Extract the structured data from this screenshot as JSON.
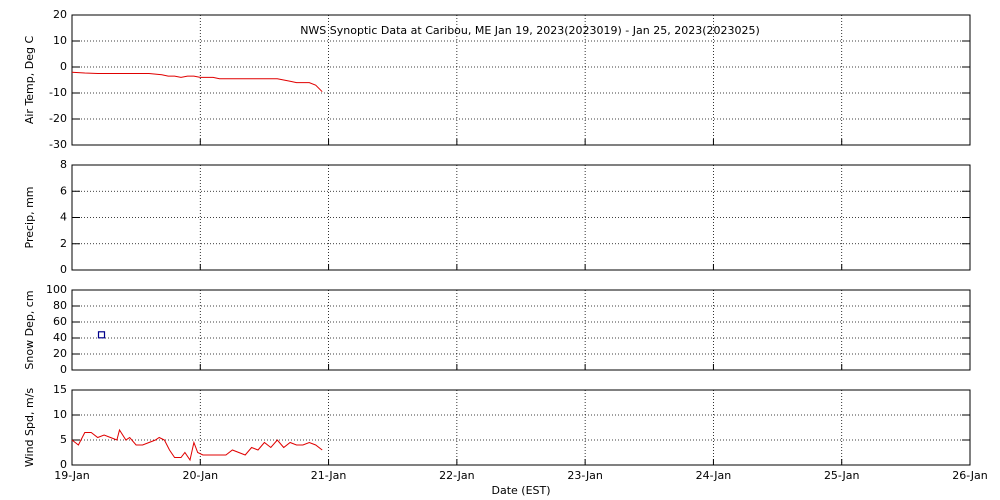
{
  "chart_data": [
    {
      "type": "line",
      "title": "NWS Synoptic Data at Caribou, ME   Jan 19, 2023(2023019) - Jan 25, 2023(2023025)",
      "ylabel": "Air Temp, Deg C",
      "color": "#e00000",
      "x": [
        0,
        0.1,
        0.2,
        0.4,
        0.6,
        0.7,
        0.75,
        0.8,
        0.85,
        0.9,
        0.95,
        1.0,
        1.1,
        1.15,
        1.5,
        1.6,
        1.65,
        1.7,
        1.75,
        1.85,
        1.9,
        1.95
      ],
      "values": [
        -2,
        -2.3,
        -2.5,
        -2.5,
        -2.5,
        -3,
        -3.5,
        -3.5,
        -4,
        -3.5,
        -3.5,
        -4,
        -4,
        -4.5,
        -4.5,
        -4.5,
        -5,
        -5.5,
        -6,
        -6,
        -7,
        -9.5
      ],
      "xlim": [
        0,
        7
      ],
      "xticks": [
        0,
        1,
        2,
        3,
        4,
        5,
        6,
        7
      ],
      "ylim": [
        -30,
        20
      ],
      "yticks": [
        -30,
        -20,
        -10,
        0,
        10,
        20
      ],
      "grid": true
    },
    {
      "type": "line",
      "ylabel": "Precip, mm",
      "color": "#e00000",
      "x": [],
      "values": [],
      "xlim": [
        0,
        7
      ],
      "xticks": [
        0,
        1,
        2,
        3,
        4,
        5,
        6,
        7
      ],
      "ylim": [
        0,
        8
      ],
      "yticks": [
        0,
        2,
        4,
        6,
        8
      ],
      "grid": true
    },
    {
      "type": "scatter",
      "ylabel": "Snow Dep, cm",
      "color": "#00008b",
      "x": [
        0.23
      ],
      "values": [
        44
      ],
      "xlim": [
        0,
        7
      ],
      "xticks": [
        0,
        1,
        2,
        3,
        4,
        5,
        6,
        7
      ],
      "ylim": [
        0,
        100
      ],
      "yticks": [
        0,
        20,
        40,
        60,
        80,
        100
      ],
      "grid": true
    },
    {
      "type": "line",
      "ylabel": "Wind Spd, m/s",
      "xlabel": "Date (EST)",
      "color": "#e00000",
      "x": [
        0,
        0.05,
        0.1,
        0.15,
        0.2,
        0.25,
        0.3,
        0.35,
        0.37,
        0.42,
        0.45,
        0.5,
        0.55,
        0.6,
        0.65,
        0.68,
        0.72,
        0.76,
        0.8,
        0.85,
        0.88,
        0.92,
        0.95,
        0.98,
        1.02,
        1.1,
        1.2,
        1.25,
        1.3,
        1.35,
        1.4,
        1.45,
        1.5,
        1.55,
        1.6,
        1.65,
        1.7,
        1.75,
        1.8,
        1.85,
        1.9,
        1.95
      ],
      "values": [
        5,
        4,
        6.5,
        6.5,
        5.5,
        6,
        5.5,
        5,
        7,
        5,
        5.5,
        4,
        4,
        4.5,
        5,
        5.5,
        5,
        3,
        1.5,
        1.5,
        2.5,
        1,
        4.5,
        2.5,
        2,
        2,
        2,
        3,
        2.5,
        2,
        3.5,
        3,
        4.5,
        3.5,
        5,
        3.5,
        4.5,
        4,
        4,
        4.5,
        4,
        3
      ],
      "xlim": [
        0,
        7
      ],
      "xticks": [
        {
          "value": 0,
          "label": "19-Jan"
        },
        {
          "value": 1,
          "label": "20-Jan"
        },
        {
          "value": 2,
          "label": "21-Jan"
        },
        {
          "value": 3,
          "label": "22-Jan"
        },
        {
          "value": 4,
          "label": "23-Jan"
        },
        {
          "value": 5,
          "label": "24-Jan"
        },
        {
          "value": 6,
          "label": "25-Jan"
        },
        {
          "value": 7,
          "label": "26-Jan"
        }
      ],
      "ylim": [
        0,
        15
      ],
      "yticks": [
        0,
        5,
        10,
        15
      ],
      "grid": true
    }
  ]
}
